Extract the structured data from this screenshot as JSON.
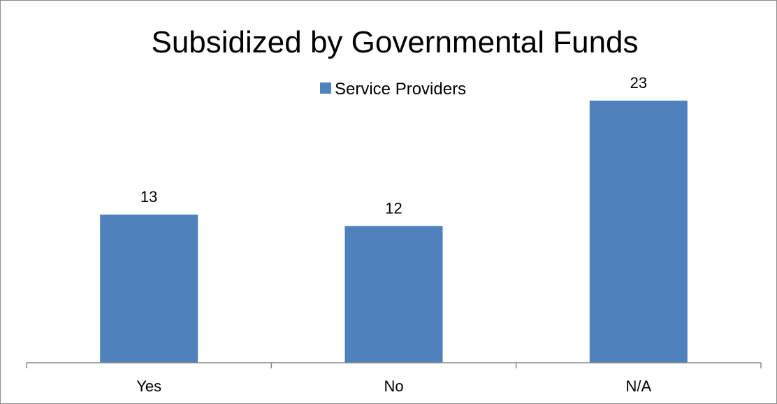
{
  "chart_data": {
    "type": "bar",
    "title": "Subsidized by Governmental Funds",
    "categories": [
      "Yes",
      "No",
      "N/A"
    ],
    "series": [
      {
        "name": "Service Providers",
        "values": [
          13,
          12,
          23
        ],
        "color": "#4f81bd"
      }
    ],
    "ylim": [
      0,
      26
    ],
    "grid": false,
    "legend_position": "top-center",
    "data_labels": true
  }
}
